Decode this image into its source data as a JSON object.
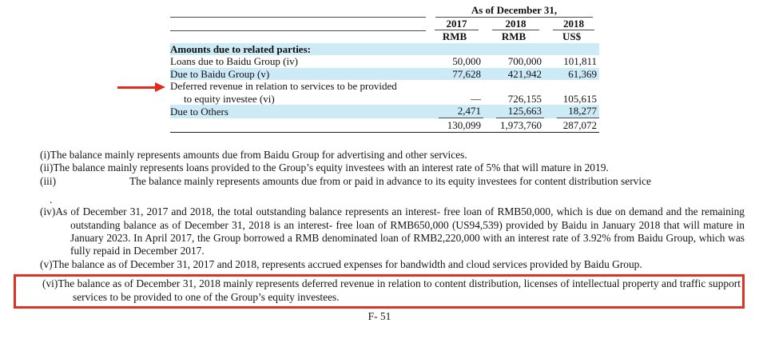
{
  "colors": {
    "row_highlight": "#cdeaf7",
    "annotation_red": "#e02b1d",
    "box_red": "#da3425"
  },
  "table": {
    "period_header": "As of December 31,",
    "columns": [
      {
        "year": "2017",
        "unit": "RMB"
      },
      {
        "year": "2018",
        "unit": "RMB"
      },
      {
        "year": "2018",
        "unit": "US$"
      }
    ],
    "section_heading": "Amounts due to related parties:",
    "rows": [
      {
        "label": "Loans due to Baidu Group (iv)",
        "y2017": "50,000",
        "y2018_rmb": "700,000",
        "y2018_usd": "101,811"
      },
      {
        "label": "Due to Baidu Group (v)",
        "y2017": "77,628",
        "y2018_rmb": "421,942",
        "y2018_usd": "61,369"
      },
      {
        "label_line1": "Deferred revenue in relation to services to be provided",
        "label_line2": "to equity investee (vi)",
        "y2017": "—",
        "y2018_rmb": "726,155",
        "y2018_usd": "105,615"
      },
      {
        "label": "Due to Others",
        "y2017": "2,471",
        "y2018_rmb": "125,663",
        "y2018_usd": "18,277"
      }
    ],
    "total_row": {
      "y2017": "130,099",
      "y2018_rmb": "1,973,760",
      "y2018_usd": "287,072"
    }
  },
  "footnotes": [
    {
      "marker": "(i)",
      "text": "The balance mainly represents amounts due from Baidu Group for advertising and other services."
    },
    {
      "marker": "(ii)",
      "text": "The balance mainly represents loans provided to the Group’s equity investees with an interest rate of 5% that will mature in 2019."
    },
    {
      "marker": "(iii)",
      "text": "The balance mainly represents amounts due from or paid in advance to its equity investees for content distribution service"
    },
    {
      "marker": ".",
      "text": ""
    },
    {
      "marker": "(iv)",
      "text": "As of December 31, 2017 and 2018, the total outstanding balance represents an interest- free loan of RMB50,000, which is due on demand and the remaining outstanding balance as of December 31, 2018 is an interest- free loan of RMB650,000 (US94,539) provided by Baidu in January 2018 that will mature in January 2023. In April 2017, the Group borrowed a RMB denominated loan of RMB2,220,000 with an interest rate of 3.92% from Baidu Group, which was fully repaid in December 2017."
    },
    {
      "marker": "(v)",
      "text": "The balance as of December 31, 2017 and 2018, represents accrued expenses for bandwidth and cloud services provided by Baidu Group."
    },
    {
      "marker": "(vi)",
      "text": "The balance as of December 31, 2018 mainly represents deferred revenue in relation to content distribution, licenses of intellectual property and traffic support services to be provided to one of the Group’s equity investees."
    }
  ],
  "footer": {
    "page_number": "F- 51"
  }
}
